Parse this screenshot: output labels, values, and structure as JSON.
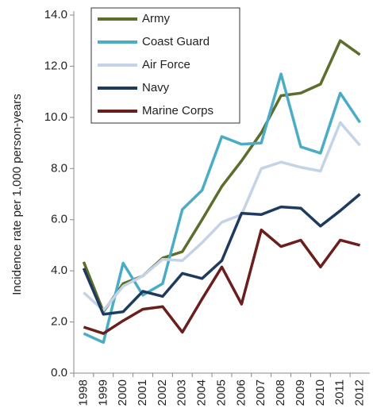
{
  "chart_data": {
    "type": "line",
    "y_label": "Incidence rate per 1,000 person-years",
    "categories": [
      "1998",
      "1999",
      "2000",
      "2001",
      "2002",
      "2003",
      "2004",
      "2005",
      "2006",
      "2007",
      "2008",
      "2009",
      "2010",
      "2011",
      "2012"
    ],
    "series": [
      {
        "name": "Army",
        "color": "#5b6e2b",
        "values": [
          4.35,
          2.4,
          3.5,
          3.8,
          4.5,
          4.75,
          6.0,
          7.3,
          8.3,
          9.4,
          10.85,
          10.95,
          11.3,
          13.0,
          12.45
        ]
      },
      {
        "name": "Coast Guard",
        "color": "#4bacc6",
        "values": [
          1.55,
          1.2,
          4.3,
          3.05,
          3.5,
          6.4,
          7.15,
          9.25,
          8.95,
          9.0,
          11.7,
          8.85,
          8.6,
          10.95,
          9.8
        ]
      },
      {
        "name": "Air Force",
        "color": "#c5d3e8",
        "values": [
          3.15,
          2.45,
          3.4,
          3.8,
          4.45,
          4.4,
          5.1,
          5.9,
          6.2,
          8.0,
          8.25,
          8.05,
          7.9,
          9.8,
          8.9
        ]
      },
      {
        "name": "Navy",
        "color": "#1f3a5f",
        "values": [
          4.1,
          2.3,
          2.4,
          3.2,
          3.0,
          3.9,
          3.7,
          4.4,
          6.25,
          6.2,
          6.5,
          6.45,
          5.75,
          6.35,
          7.0
        ]
      },
      {
        "name": "Marine Corps",
        "color": "#6b1e1e",
        "values": [
          1.8,
          1.55,
          2.05,
          2.5,
          2.6,
          1.6,
          2.9,
          4.15,
          2.7,
          5.6,
          4.95,
          5.2,
          4.15,
          5.2,
          5.0
        ]
      }
    ],
    "ylim": [
      0,
      14
    ],
    "yticks": [
      {
        "value": 0,
        "label": "0.0"
      },
      {
        "value": 2,
        "label": "2.0"
      },
      {
        "value": 4,
        "label": "4.0"
      },
      {
        "value": 6,
        "label": "6.0"
      },
      {
        "value": 8,
        "label": "8.0"
      },
      {
        "value": 10,
        "label": "10.0"
      },
      {
        "value": 12,
        "label": "12.0"
      },
      {
        "value": 14,
        "label": "14.0"
      }
    ],
    "legend": "upper left"
  }
}
